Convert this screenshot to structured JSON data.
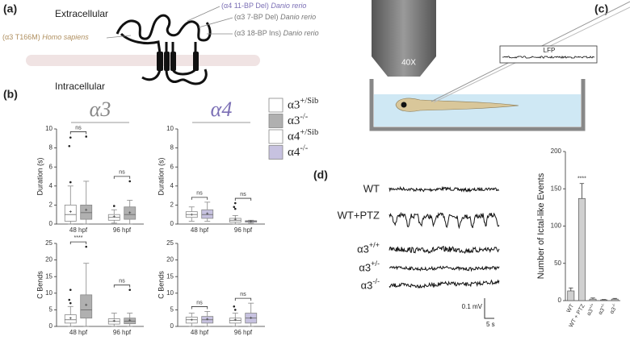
{
  "panels": {
    "a": {
      "label": "(a)",
      "extracellular": "Extracellular",
      "intracellular": "Intracellular",
      "variants": [
        {
          "allele": "(α4 11-BP Del)",
          "species": "Danio rerio"
        },
        {
          "allele": "(α3 7-BP Del)",
          "species": "Danio rerio"
        },
        {
          "allele": "(α3 18-BP Ins)",
          "species": "Danio rerio"
        },
        {
          "allele": "(α3 T166M)",
          "species": "Homo sapiens"
        }
      ]
    },
    "b": {
      "label": "(b)",
      "group_titles": [
        "α3",
        "α4"
      ]
    },
    "c": {
      "label": "(c)",
      "objective": "40X",
      "recording": "LFP"
    },
    "d": {
      "label": "(d)",
      "traces": [
        "WT",
        "WT+PTZ",
        "α3+/+",
        "α3+/-",
        "α3-/-"
      ],
      "scale_voltage": "0.1 mV",
      "scale_time": "5 s"
    }
  },
  "chart_data": [
    {
      "type": "box",
      "ylabel": "Duration (s)",
      "categories": [
        "48 hpf",
        "96 hpf"
      ],
      "ylim": [
        0,
        10
      ],
      "yticks": [
        0,
        2,
        4,
        6,
        8,
        10
      ],
      "series": [
        {
          "name": "α3+/Sib",
          "color": "#ffffff",
          "boxes": [
            {
              "min": 0,
              "q1": 0.3,
              "median": 1.0,
              "q3": 2.0,
              "max": 4.0,
              "mean": 1.3,
              "outliers": [
                9.1,
                8.2,
                4.4
              ]
            },
            {
              "min": 0.1,
              "q1": 0.4,
              "median": 0.7,
              "q3": 1.0,
              "max": 1.5,
              "mean": 0.8,
              "outliers": [
                1.9
              ]
            }
          ]
        },
        {
          "name": "α3-/-",
          "color": "#b0b0b0",
          "boxes": [
            {
              "min": 0,
              "q1": 0.5,
              "median": 1.2,
              "q3": 2.0,
              "max": 4.5,
              "mean": 1.5,
              "outliers": [
                9.2
              ]
            },
            {
              "min": 0,
              "q1": 0.5,
              "median": 1.0,
              "q3": 1.8,
              "max": 2.5,
              "mean": 1.2,
              "outliers": [
                4.5
              ]
            }
          ]
        }
      ],
      "comparisons": [
        "ns",
        "ns"
      ]
    },
    {
      "type": "box",
      "ylabel": "C Bends",
      "categories": [
        "48 hpf",
        "96 hpf"
      ],
      "ylim": [
        0,
        25
      ],
      "yticks": [
        0,
        5,
        10,
        15,
        20,
        25
      ],
      "series": [
        {
          "color": "#ffffff",
          "boxes": [
            {
              "min": 0,
              "q1": 1,
              "median": 2,
              "q3": 3.5,
              "max": 6,
              "mean": 2.5,
              "outliers": [
                7,
                8,
                11
              ]
            },
            {
              "min": 0,
              "q1": 0.7,
              "median": 1.5,
              "q3": 2.3,
              "max": 4,
              "mean": 1.7,
              "outliers": []
            }
          ]
        },
        {
          "color": "#b0b0b0",
          "boxes": [
            {
              "min": 0,
              "q1": 2.5,
              "median": 5,
              "q3": 9.5,
              "max": 19,
              "mean": 6.5,
              "outliers": [
                24
              ]
            },
            {
              "min": 0,
              "q1": 0.8,
              "median": 1.6,
              "q3": 2.5,
              "max": 4,
              "mean": 1.9,
              "outliers": [
                11
              ]
            }
          ]
        }
      ],
      "comparisons": [
        "****",
        "ns"
      ]
    },
    {
      "type": "box",
      "ylabel": "Duration (s)",
      "categories": [
        "48 hpf",
        "96 hpf"
      ],
      "ylim": [
        0,
        10
      ],
      "yticks": [
        0,
        2,
        4,
        6,
        8,
        10
      ],
      "series": [
        {
          "name": "α4+/Sib",
          "color": "#ffffff",
          "boxes": [
            {
              "min": 0.3,
              "q1": 0.7,
              "median": 1.0,
              "q3": 1.3,
              "max": 1.8,
              "mean": 1.0,
              "outliers": []
            },
            {
              "min": 0,
              "q1": 0.2,
              "median": 0.4,
              "q3": 0.6,
              "max": 0.9,
              "mean": 0.5,
              "outliers": [
                2.2,
                1.8,
                1.6
              ]
            }
          ]
        },
        {
          "name": "α4-/-",
          "color": "#c7c2e0",
          "boxes": [
            {
              "min": 0.3,
              "q1": 0.6,
              "median": 1.0,
              "q3": 1.5,
              "max": 2.3,
              "mean": 1.1,
              "outliers": []
            },
            {
              "min": 0.1,
              "q1": 0.2,
              "median": 0.3,
              "q3": 0.35,
              "max": 0.4,
              "mean": 0.3,
              "outliers": []
            }
          ]
        }
      ],
      "comparisons": [
        "ns",
        "ns"
      ]
    },
    {
      "type": "box",
      "ylabel": "C Bends",
      "categories": [
        "48 hpf",
        "96 hpf"
      ],
      "ylim": [
        0,
        25
      ],
      "yticks": [
        0,
        5,
        10,
        15,
        20,
        25
      ],
      "series": [
        {
          "color": "#ffffff",
          "boxes": [
            {
              "min": 0,
              "q1": 1,
              "median": 2,
              "q3": 2.8,
              "max": 4,
              "mean": 2,
              "outliers": []
            },
            {
              "min": 0,
              "q1": 1,
              "median": 1.8,
              "q3": 2.5,
              "max": 4,
              "mean": 2,
              "outliers": [
                5,
                6
              ]
            }
          ]
        },
        {
          "color": "#c7c2e0",
          "boxes": [
            {
              "min": 0,
              "q1": 1,
              "median": 2,
              "q3": 3,
              "max": 4.5,
              "mean": 2.2,
              "outliers": []
            },
            {
              "min": 0,
              "q1": 1,
              "median": 2.5,
              "q3": 4,
              "max": 7,
              "mean": 2.6,
              "outliers": []
            }
          ]
        }
      ],
      "comparisons": [
        "ns",
        "ns"
      ]
    },
    {
      "type": "bar",
      "ylabel": "Number of Ictal-like Events",
      "categories": [
        "WT",
        "WT + PTZ",
        "α3+/+",
        "α3+/-",
        "α3-/-"
      ],
      "values": [
        13,
        137,
        2,
        1,
        2
      ],
      "errors": [
        4,
        20,
        1.5,
        0.5,
        1
      ],
      "color": "#d0d0d0",
      "ylim": [
        0,
        200
      ],
      "yticks": [
        0,
        50,
        100,
        150,
        200
      ],
      "value_annotations": [
        null,
        "****",
        null,
        null,
        null
      ]
    }
  ]
}
